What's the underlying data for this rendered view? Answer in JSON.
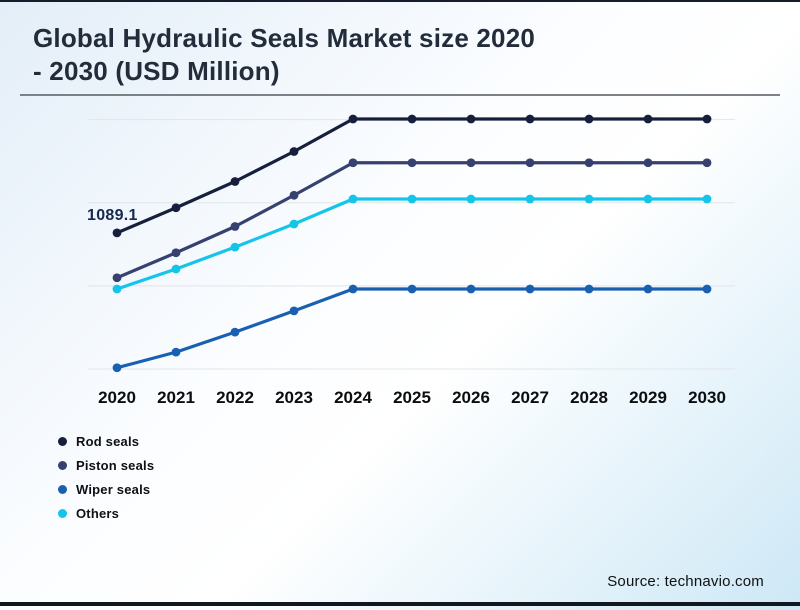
{
  "page": {
    "title_line1": "Global Hydraulic Seals Market size 2020",
    "title_line2": "- 2030 (USD Million)",
    "source": "Source: technavio.com"
  },
  "theme": {
    "background_gradient": [
      "#e3eef8",
      "#ffffff",
      "#cde8f6"
    ],
    "border_color": "#151c2c",
    "title_color": "#232c3a",
    "divider_color": "#7c8187",
    "gridline_color": "#e2e5e8",
    "data_label_color": "#15294e"
  },
  "chart_data": {
    "type": "line",
    "title": "Global Hydraulic Seals Market size 2020 - 2030 (USD Million)",
    "x_categories": [
      "2020",
      "2021",
      "2022",
      "2023",
      "2024",
      "2025",
      "2026",
      "2027",
      "2028",
      "2029",
      "2030"
    ],
    "series": [
      {
        "name": "Rod seals",
        "color": "#16203c",
        "values": [
          1089.1,
          1290,
          1500,
          1740,
          2000,
          2000,
          2000,
          2000,
          2000,
          2000,
          2000
        ]
      },
      {
        "name": "Piston seals",
        "color": "#36416f",
        "values": [
          730,
          930,
          1140,
          1390,
          1650,
          1650,
          1650,
          1650,
          1650,
          1650,
          1650
        ]
      },
      {
        "name": "Wiper seals",
        "color": "#1a60b2",
        "values": [
          10,
          135,
          295,
          465,
          640,
          640,
          640,
          640,
          640,
          640,
          640
        ]
      },
      {
        "name": "Others",
        "color": "#15c5e9",
        "values": [
          640,
          800,
          975,
          1160,
          1360,
          1360,
          1360,
          1360,
          1360,
          1360,
          1360
        ]
      }
    ],
    "data_label": {
      "text": "1089.1",
      "series": "Rod seals",
      "category": "2020",
      "value": 1089.1
    },
    "ylim": [
      0,
      2112
    ],
    "gridline_values": [
      0,
      665,
      1330,
      1995
    ],
    "grid": "horizontal-only",
    "y_axis_labels_visible": false,
    "x_axis_labels_visible": true,
    "legend_position": "bottom-left"
  }
}
